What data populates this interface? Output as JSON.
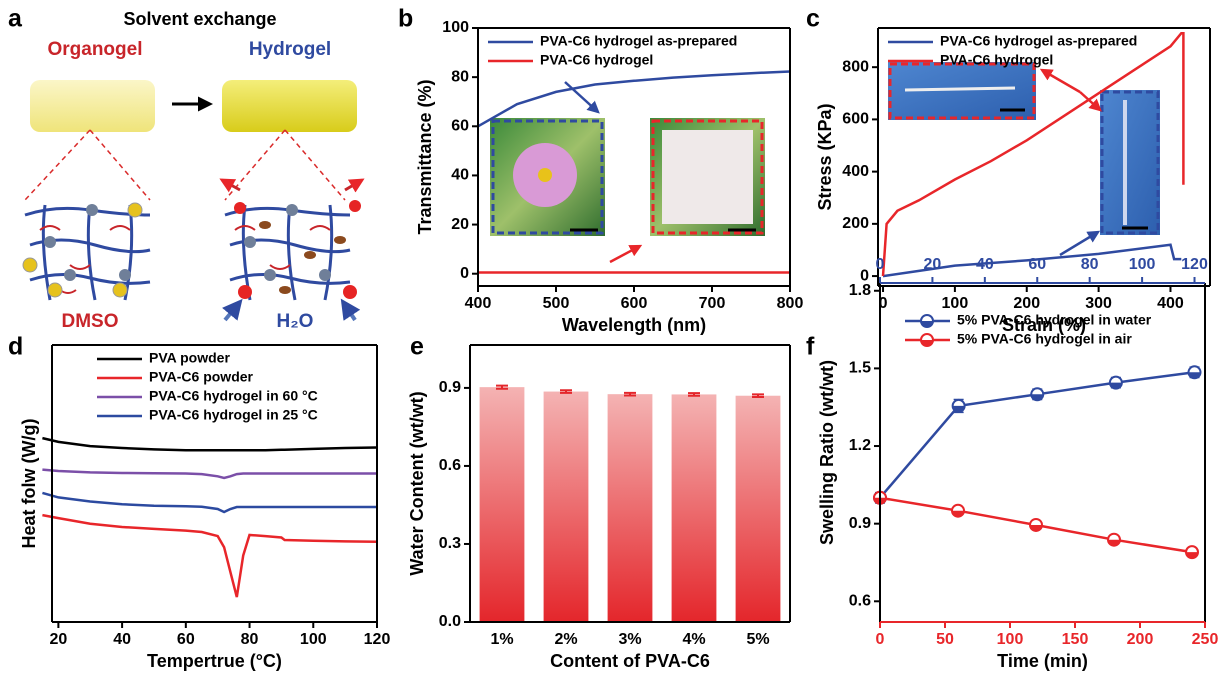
{
  "diagram": {
    "panel": "a",
    "title": "Solvent exchange",
    "left_label": "Organogel",
    "right_label": "Hydrogel",
    "left_solvent": "DMSO",
    "right_solvent": "H₂O"
  },
  "chart_data": [
    {
      "panel": "b",
      "type": "line",
      "xlabel": "Wavelength (nm)",
      "ylabel": "Transmittance (%)",
      "x": [
        400,
        450,
        500,
        550,
        600,
        650,
        700,
        750,
        800
      ],
      "series": [
        {
          "name": "PVA-C6 hydrogel as-prepared",
          "color": "#2f4aa0",
          "values": [
            60,
            69,
            74,
            77,
            78.5,
            79.8,
            80.8,
            81.6,
            82.3
          ]
        },
        {
          "name": "PVA-C6 hydrogel",
          "color": "#e8262a",
          "values": [
            0.5,
            0.5,
            0.5,
            0.5,
            0.5,
            0.5,
            0.5,
            0.5,
            0.5
          ]
        }
      ],
      "xlim": [
        400,
        800
      ],
      "xticks": [
        400,
        500,
        600,
        700,
        800
      ],
      "ylim": [
        -5,
        100
      ],
      "yticks": [
        0,
        20,
        40,
        60,
        80,
        100
      ],
      "legend": "upper left"
    },
    {
      "panel": "c",
      "type": "line",
      "xlabel": "Strain (%)",
      "ylabel": "Stress (KPa)",
      "series": [
        {
          "name": "PVA-C6 hydrogel as-prepared",
          "color": "#2f4aa0",
          "x": [
            0,
            50,
            100,
            200,
            300,
            400,
            405,
            415
          ],
          "values": [
            0,
            20,
            40,
            60,
            85,
            120,
            65,
            65
          ]
        },
        {
          "name": "PVA-C6 hydrogel",
          "color": "#e8262a",
          "x": [
            0,
            5,
            20,
            50,
            100,
            150,
            200,
            250,
            300,
            350,
            400,
            415,
            418,
            418
          ],
          "values": [
            0,
            200,
            250,
            290,
            370,
            440,
            520,
            610,
            700,
            790,
            880,
            930,
            930,
            350
          ]
        }
      ],
      "xlim": [
        -7,
        455
      ],
      "xticks": [
        0,
        100,
        200,
        300,
        400
      ],
      "ylim": [
        -38,
        950
      ],
      "yticks": [
        0,
        200,
        400,
        600,
        800
      ],
      "legend": "upper left"
    },
    {
      "panel": "d",
      "type": "line",
      "xlabel": "Tempertrue (°C)",
      "ylabel": "Heat folw (W/g)",
      "x": [
        15,
        20,
        30,
        40,
        50,
        60,
        65,
        70,
        72,
        74,
        76,
        78,
        80,
        85,
        90,
        91,
        100,
        110,
        120
      ],
      "series": [
        {
          "name": "PVA powder",
          "color": "#000000",
          "values": [
            66.4,
            65,
            63.5,
            62.8,
            62.3,
            62,
            62,
            62,
            62,
            62,
            62,
            62,
            62,
            62,
            62.2,
            62.2,
            62.5,
            62.8,
            63
          ]
        },
        {
          "name": "PVA-C6 powder",
          "color": "#e8262a",
          "values": [
            38.6,
            37.5,
            35.5,
            34.3,
            33.6,
            33,
            32.5,
            31,
            27,
            18,
            9,
            24,
            31.4,
            31,
            30.5,
            29.6,
            29.3,
            29.1,
            29
          ]
        },
        {
          "name": "PVA-C6 hydrogel in 60 °C",
          "color": "#7b4fa8",
          "values": [
            55,
            54.5,
            54,
            53.8,
            53.7,
            53.6,
            53.4,
            52.6,
            52,
            52.6,
            53.4,
            53.6,
            53.6,
            53.6,
            53.6,
            53.6,
            53.6,
            53.6,
            53.6
          ]
        },
        {
          "name": "PVA-C6 hydrogel in 25 °C",
          "color": "#2c4aa0",
          "values": [
            46.6,
            45,
            43.5,
            42.5,
            42,
            41.8,
            41.6,
            40.8,
            39.7,
            40.8,
            41.5,
            41.5,
            41.5,
            41.5,
            41.5,
            41.5,
            41.5,
            41.5,
            41.5
          ]
        }
      ],
      "xlim": [
        18,
        120
      ],
      "xticks": [
        20,
        40,
        60,
        80,
        100,
        120
      ],
      "ylim": [
        0,
        100
      ],
      "legend": "upper left"
    },
    {
      "panel": "e",
      "type": "bar",
      "xlabel": "Content of PVA-C6",
      "ylabel": "Water Content (wt/wt)",
      "categories": [
        "1%",
        "2%",
        "3%",
        "4%",
        "5%"
      ],
      "values": [
        0.903,
        0.886,
        0.876,
        0.875,
        0.87
      ],
      "errors": [
        0.006,
        0.005,
        0.005,
        0.005,
        0.005
      ],
      "color": "#e4262b",
      "ylim": [
        0,
        1.065
      ],
      "yticks": [
        {
          "value": 0,
          "label": "0.0"
        },
        0.3,
        0.6,
        0.9
      ]
    },
    {
      "panel": "f",
      "type": "scatter",
      "xlabel": "Time (min)",
      "ylabel": "Swelling Ratio (wt/wt)",
      "series": [
        {
          "name": "5% PVA-C6 hydrogel in water",
          "color": "#2f4aa0",
          "xaxis": "x2",
          "x": [
            0,
            30,
            60,
            90,
            120
          ],
          "values": [
            1.0,
            1.355,
            1.4,
            1.445,
            1.485
          ],
          "errors": [
            0.02,
            0.025,
            0.02,
            0.02,
            0.02
          ]
        },
        {
          "name": "5% PVA-C6 hydrogel in air",
          "color": "#e8262a",
          "x": [
            0,
            60,
            120,
            180,
            240
          ],
          "values": [
            1.0,
            0.95,
            0.895,
            0.838,
            0.79
          ],
          "errors": [
            0.01,
            0.015,
            0.015,
            0.015,
            0.015
          ]
        }
      ],
      "xlim": [
        0,
        250
      ],
      "xticks": [
        0,
        50,
        100,
        150,
        200,
        250
      ],
      "xcolor": "#e8262a",
      "x2lim": [
        0,
        124
      ],
      "x2ticks": [
        0,
        20,
        40,
        60,
        80,
        100,
        120
      ],
      "x2color": "#2f4aa0",
      "ylim": [
        0.52,
        1.83
      ],
      "yticks": [
        0.6,
        0.9,
        1.2,
        1.5,
        1.8
      ],
      "legend": "upper left"
    }
  ]
}
